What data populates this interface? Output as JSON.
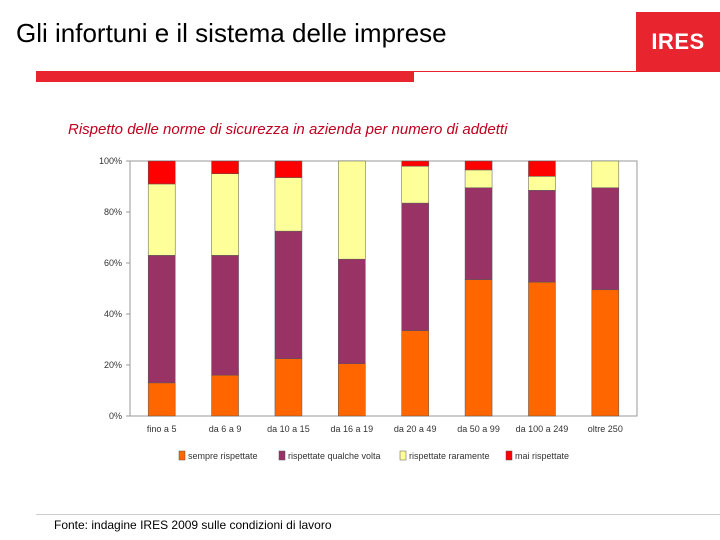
{
  "header": {
    "title": "Gli infortuni e il sistema delle imprese",
    "logo_text": "IRES"
  },
  "footer": {
    "source": "Fonte: indagine IRES 2009 sulle condizioni di lavoro"
  },
  "colors": {
    "accent": "#e8252f",
    "subtitle": "#c0001e"
  },
  "chart_data": {
    "type": "bar",
    "stacked": true,
    "title": "Rispetto delle norme di sicurezza in azienda per numero di addetti",
    "xlabel": "",
    "ylabel": "",
    "ylim": [
      0,
      100
    ],
    "yticks": [
      "0%",
      "20%",
      "40%",
      "60%",
      "80%",
      "100%"
    ],
    "grid": false,
    "legend": "bottom",
    "categories": [
      "fino a 5",
      "da 6 a 9",
      "da 10 a 15",
      "da 16 a 19",
      "da 20 a 49",
      "da 50 a 99",
      "da 100 a 249",
      "oltre 250"
    ],
    "series": [
      {
        "name": "sempre rispettate",
        "color": "#ff6600",
        "values": [
          13,
          16,
          22.5,
          20.5,
          33.5,
          53.5,
          52.5,
          49.5
        ]
      },
      {
        "name": "rispettate qualche volta",
        "color": "#993366",
        "values": [
          50,
          47,
          50,
          41,
          50,
          36,
          36,
          40
        ]
      },
      {
        "name": "rispettate raramente",
        "color": "#ffff99",
        "values": [
          28,
          32,
          21,
          38.5,
          14.5,
          7,
          5.5,
          10.5
        ]
      },
      {
        "name": "mai rispettate",
        "color": "#ff0000",
        "values": [
          9,
          5,
          6.5,
          0,
          2,
          3.5,
          6,
          0
        ]
      }
    ]
  }
}
